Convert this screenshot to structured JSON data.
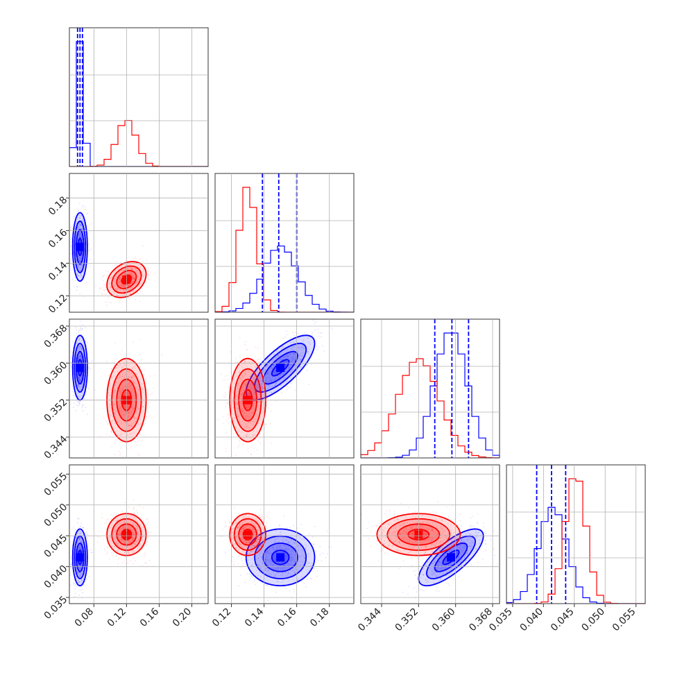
{
  "chart_data": {
    "type": "corner",
    "title": "",
    "parameters": [
      {
        "label": "",
        "range": [
          0.05,
          0.22
        ],
        "ticks": [
          0.08,
          0.12,
          0.16,
          0.2
        ],
        "tick_labels": [
          "0.08",
          "0.12",
          "0.16",
          "0.20"
        ]
      },
      {
        "label": "",
        "range": [
          0.11,
          0.195
        ],
        "ticks": [
          0.12,
          0.14,
          0.16,
          0.18
        ],
        "tick_labels": [
          "0.12",
          "0.14",
          "0.16",
          "0.18"
        ]
      },
      {
        "label": "",
        "range": [
          0.3395,
          0.3695
        ],
        "ticks": [
          0.344,
          0.352,
          0.36,
          0.368
        ],
        "tick_labels": [
          "0.344",
          "0.352",
          "0.360",
          "0.368"
        ]
      },
      {
        "label": "",
        "range": [
          0.034,
          0.0565
        ],
        "ticks": [
          0.035,
          0.04,
          0.045,
          0.05,
          0.055
        ],
        "tick_labels": [
          "0.035",
          "0.040",
          "0.045",
          "0.050",
          "0.055"
        ]
      }
    ],
    "series": [
      {
        "color": "#0000ff",
        "means": [
          0.063,
          0.15,
          0.359,
          0.0415
        ],
        "sds": [
          0.0045,
          0.0105,
          0.0035,
          0.0023
        ],
        "correlations": {
          "0-1": 0.0,
          "0-2": 0.0,
          "0-3": 0.0,
          "1-2": 0.75,
          "1-3": 0.0,
          "2-3": 0.75
        },
        "quantile_lines": [
          [
            0.06,
            0.063,
            0.066
          ],
          [
            0.139,
            0.149,
            0.16
          ],
          [
            0.3555,
            0.3592,
            0.3628
          ],
          [
            0.0389,
            0.0413,
            0.0436
          ]
        ]
      },
      {
        "color": "#ff0000",
        "means": [
          0.12,
          0.13,
          0.352,
          0.0452
        ],
        "sds": [
          0.012,
          0.0055,
          0.0045,
          0.0017
        ],
        "correlations": {
          "0-1": 0.3,
          "0-2": 0.0,
          "0-3": 0.0,
          "1-2": 0.0,
          "1-3": 0.0,
          "2-3": 0.0
        },
        "quantile_lines": []
      }
    ],
    "contour_levels_sigma": [
      0.5,
      1.0,
      1.5,
      2.0
    ],
    "histogram_bins": 20,
    "grid": true
  }
}
